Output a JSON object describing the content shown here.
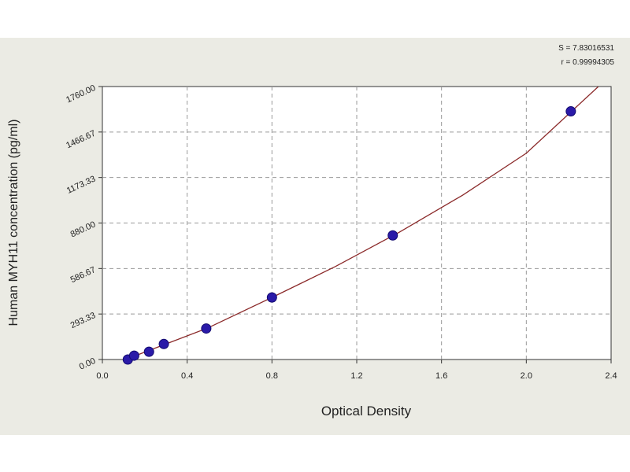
{
  "chart_data": {
    "type": "scatter",
    "xlabel": "Optical Density",
    "ylabel": "Human MYH11 concentration (pg/ml)",
    "annotations": [
      "S = 7.83016531",
      "r = 0.99994305"
    ],
    "x": [
      0.12,
      0.15,
      0.22,
      0.29,
      0.49,
      0.8,
      1.37,
      2.21
    ],
    "values": [
      0,
      25,
      50,
      100,
      200,
      400,
      800,
      1600
    ],
    "color": "#2a1aa8",
    "fit": {
      "x": [
        0.1,
        0.3,
        0.5,
        0.8,
        1.1,
        1.4,
        1.7,
        2.0,
        2.34
      ],
      "values": [
        -5,
        100,
        205,
        400,
        600,
        820,
        1060,
        1330,
        1760
      ],
      "color": "#8b2a2a"
    },
    "xlim": [
      0,
      2.4
    ],
    "ylim": [
      0,
      1760
    ],
    "xticks": [
      {
        "value": 0,
        "label": "0.0"
      },
      {
        "value": 0.4,
        "label": "0.4"
      },
      {
        "value": 0.8,
        "label": "0.8"
      },
      {
        "value": 1.2,
        "label": "1.2"
      },
      {
        "value": 1.6,
        "label": "1.6"
      },
      {
        "value": 2.0,
        "label": "2.0"
      },
      {
        "value": 2.4,
        "label": "2.4"
      }
    ],
    "yticks": [
      {
        "value": 0,
        "label": "0.00"
      },
      {
        "value": 293.33,
        "label": "293.33"
      },
      {
        "value": 586.67,
        "label": "586.67"
      },
      {
        "value": 880,
        "label": "880.00"
      },
      {
        "value": 1173.33,
        "label": "1173.33"
      },
      {
        "value": 1466.67,
        "label": "1466.67"
      },
      {
        "value": 1760,
        "label": "1760.00"
      }
    ],
    "grid": true
  }
}
